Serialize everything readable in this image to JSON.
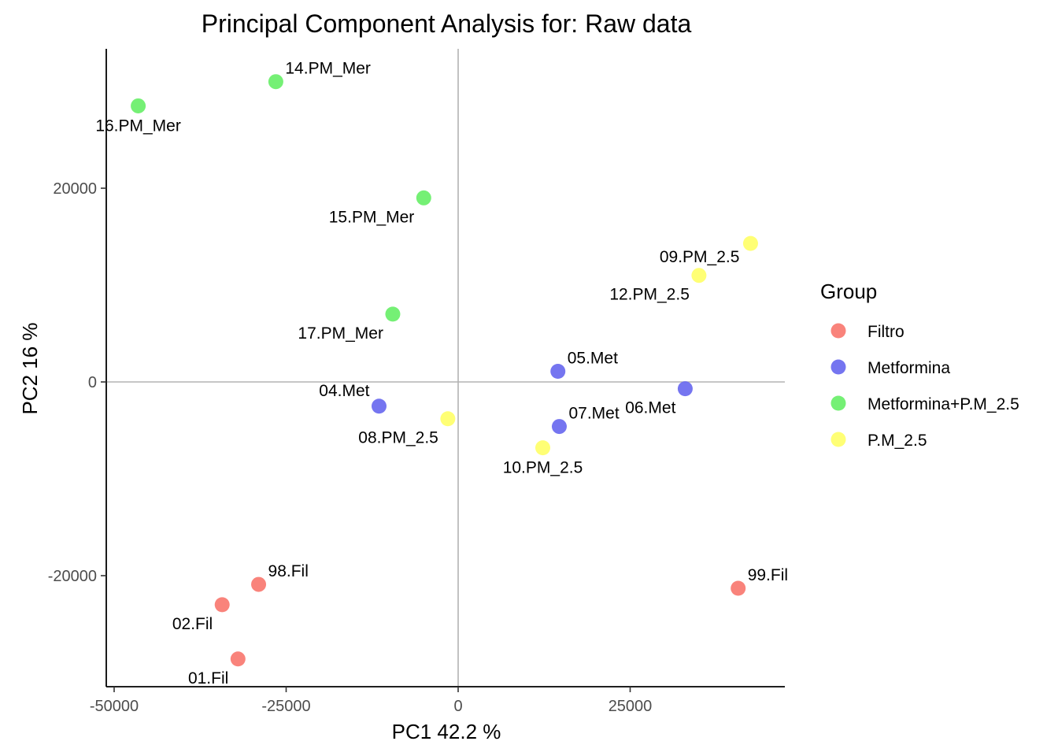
{
  "chart_data": {
    "type": "scatter",
    "title": "Principal Component Analysis for:  Raw data",
    "xlabel": "PC1 42.2 %",
    "ylabel": "PC2 16 %",
    "xlim": [
      -52000,
      56000
    ],
    "ylim": [
      -31500,
      34500
    ],
    "x_ticks": [
      -50000,
      -25000,
      0,
      25000
    ],
    "x_tick_labels": [
      "-50000",
      "-25000",
      "0",
      "25000"
    ],
    "y_ticks": [
      -20000,
      0,
      20000
    ],
    "y_tick_labels": [
      "-20000",
      "0",
      "20000"
    ],
    "reference_lines": {
      "x": 0,
      "y": 0
    },
    "grid": false,
    "legend": {
      "title": "Group",
      "placement": "right",
      "entries": [
        {
          "name": "Filtro",
          "color": "#F8766D"
        },
        {
          "name": "Metformina",
          "color": "#6666EE"
        },
        {
          "name": "Metformina+P.M_2.5",
          "color": "#66EE66"
        },
        {
          "name": "P.M_2.5",
          "color": "#FFFF66"
        }
      ]
    },
    "points": [
      {
        "label": "14.PM_Mer",
        "group": "Metformina+P.M_2.5",
        "x": -26500,
        "y": 31000,
        "label_pos": "above-right"
      },
      {
        "label": "16.PM_Mer",
        "group": "Metformina+P.M_2.5",
        "x": -46500,
        "y": 28500,
        "label_pos": "below"
      },
      {
        "label": "15.PM_Mer",
        "group": "Metformina+P.M_2.5",
        "x": -5000,
        "y": 19000,
        "label_pos": "below-left"
      },
      {
        "label": "17.PM_Mer",
        "group": "Metformina+P.M_2.5",
        "x": -9500,
        "y": 7000,
        "label_pos": "below-left"
      },
      {
        "label": "09.PM_2.5",
        "group": "P.M_2.5",
        "x": 42500,
        "y": 14300,
        "label_pos": "left-below"
      },
      {
        "label": "12.PM_2.5",
        "group": "P.M_2.5",
        "x": 35000,
        "y": 11000,
        "label_pos": "below-left"
      },
      {
        "label": "08.PM_2.5",
        "group": "P.M_2.5",
        "x": -1500,
        "y": -3800,
        "label_pos": "below-left"
      },
      {
        "label": "10.PM_2.5",
        "group": "P.M_2.5",
        "x": 12300,
        "y": -6800,
        "label_pos": "below"
      },
      {
        "label": "05.Met",
        "group": "Metformina",
        "x": 14500,
        "y": 1100,
        "label_pos": "above-right"
      },
      {
        "label": "04.Met",
        "group": "Metformina",
        "x": -11500,
        "y": -2500,
        "label_pos": "above-left"
      },
      {
        "label": "07.Met",
        "group": "Metformina",
        "x": 14700,
        "y": -4600,
        "label_pos": "above-right"
      },
      {
        "label": "06.Met",
        "group": "Metformina",
        "x": 33000,
        "y": -700,
        "label_pos": "below-left"
      },
      {
        "label": "98.Fil",
        "group": "Filtro",
        "x": -29000,
        "y": -20900,
        "label_pos": "above-right"
      },
      {
        "label": "99.Fil",
        "group": "Filtro",
        "x": 40700,
        "y": -21300,
        "label_pos": "above-right"
      },
      {
        "label": "02.Fil",
        "group": "Filtro",
        "x": -34300,
        "y": -23000,
        "label_pos": "below-left"
      },
      {
        "label": "01.Fil",
        "group": "Filtro",
        "x": -32000,
        "y": -28600,
        "label_pos": "below-left"
      }
    ]
  }
}
